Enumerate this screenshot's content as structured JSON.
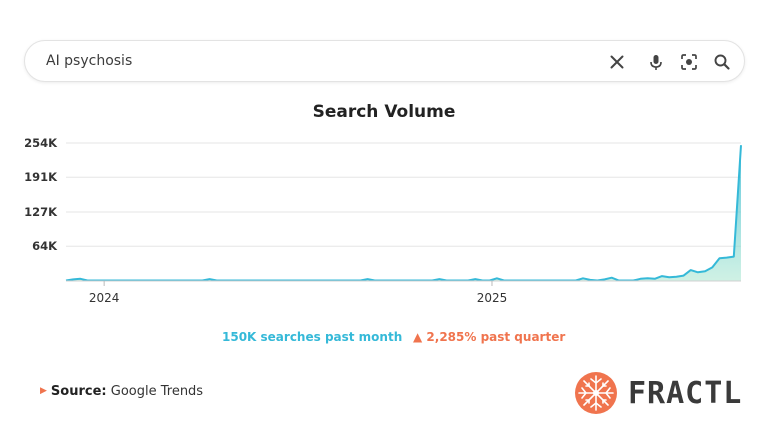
{
  "search": {
    "query": "AI psychosis",
    "icons": [
      "close-icon",
      "microphone-icon",
      "lens-icon",
      "search-icon"
    ]
  },
  "chart_data": {
    "type": "area",
    "title": "Search Volume",
    "xlabel": "",
    "ylabel": "",
    "yticks": [
      "254K",
      "191K",
      "127K",
      "64K"
    ],
    "ytick_values": [
      254000,
      191000,
      127000,
      64000
    ],
    "ylim": [
      0,
      254000
    ],
    "xticks": [
      "2024",
      "2025"
    ],
    "x_start": "2023-11-26",
    "x_end": "2025-08-24",
    "xtick_dates": [
      "2024-01-01",
      "2025-01-01"
    ],
    "grid": true,
    "color": "#35b9d8",
    "values": [
      1000,
      3000,
      4000,
      1000,
      1000,
      1000,
      1000,
      1000,
      1000,
      1000,
      1000,
      1000,
      1000,
      1000,
      1000,
      1000,
      1000,
      1000,
      1000,
      1000,
      3500,
      1000,
      1000,
      1000,
      1000,
      1000,
      1000,
      1000,
      1000,
      1000,
      1000,
      1000,
      1000,
      1000,
      1000,
      1000,
      1000,
      1000,
      1000,
      1000,
      1000,
      1000,
      3500,
      1000,
      1000,
      1000,
      1000,
      1000,
      1000,
      1000,
      1000,
      1000,
      3500,
      1000,
      1000,
      1000,
      1000,
      3500,
      1000,
      1000,
      5000,
      1000,
      1000,
      1000,
      1000,
      1000,
      1000,
      1000,
      1000,
      1000,
      1000,
      1000,
      5000,
      2000,
      1000,
      3000,
      6000,
      1000,
      1000,
      1000,
      4000,
      5000,
      4000,
      9000,
      7000,
      8000,
      10000,
      20000,
      16000,
      18000,
      25000,
      42000,
      43000,
      45000,
      250000
    ]
  },
  "stats": {
    "searches": "150K searches past month",
    "change": "▲ 2,285% past quarter"
  },
  "source": {
    "label": "Source:",
    "value": "Google Trends"
  },
  "brand": {
    "name": "FRACTL",
    "accent": "#f0744e"
  }
}
